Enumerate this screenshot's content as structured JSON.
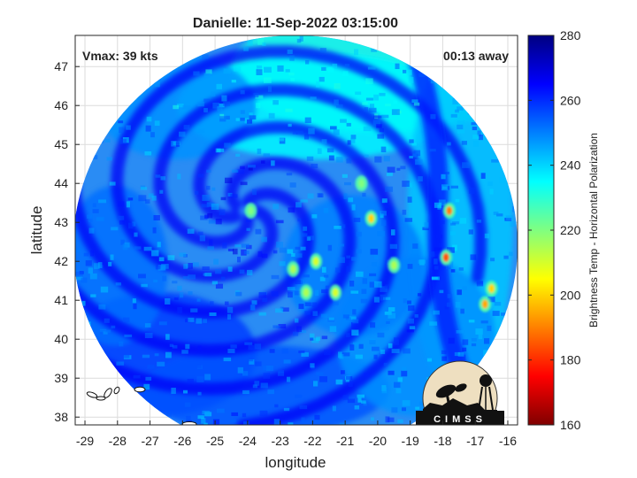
{
  "chart_data": {
    "type": "heatmap",
    "title": "Danielle: 11-Sep-2022 03:15:00",
    "xlabel": "longitude",
    "ylabel": "latitude",
    "xlim": [
      -29.3,
      -15.7
    ],
    "ylim": [
      37.8,
      47.8
    ],
    "x_ticks": [
      -29,
      -28,
      -27,
      -26,
      -25,
      -24,
      -23,
      -22,
      -21,
      -20,
      -19,
      -18,
      -17,
      -16
    ],
    "y_ticks": [
      38,
      39,
      40,
      41,
      42,
      43,
      44,
      45,
      46,
      47
    ],
    "grid": true,
    "annotations": {
      "vmax": "Vmax: 39 kts",
      "time_away": "00:13 away"
    },
    "storm_center": {
      "lon": -24.1,
      "lat": 43.3
    },
    "swath": {
      "center_lon": -22.5,
      "center_lat": 42.6
    },
    "colorbar": {
      "label": "Brightness Temp - Horizontal Polarization",
      "min": 160,
      "max": 280,
      "ticks": [
        280,
        260,
        240,
        220,
        200,
        180,
        160
      ],
      "colormap": [
        "#800000",
        "#ff0000",
        "#ff8000",
        "#ffff00",
        "#80ff80",
        "#00ffff",
        "#0080ff",
        "#0000ff",
        "#000080"
      ]
    },
    "warm_cells": [
      {
        "lon": -17.9,
        "lat": 42.1,
        "value": 185
      },
      {
        "lon": -17.8,
        "lat": 43.3,
        "value": 190
      },
      {
        "lon": -16.7,
        "lat": 40.9,
        "value": 195
      },
      {
        "lon": -20.2,
        "lat": 43.1,
        "value": 200
      },
      {
        "lon": -16.5,
        "lat": 41.3,
        "value": 200
      },
      {
        "lon": -21.9,
        "lat": 42.0,
        "value": 210
      },
      {
        "lon": -21.3,
        "lat": 41.2,
        "value": 210
      },
      {
        "lon": -22.2,
        "lat": 41.2,
        "value": 215
      },
      {
        "lon": -22.6,
        "lat": 41.8,
        "value": 215
      },
      {
        "lon": -19.5,
        "lat": 41.9,
        "value": 215
      },
      {
        "lon": -23.9,
        "lat": 43.3,
        "value": 220
      },
      {
        "lon": -20.5,
        "lat": 44.0,
        "value": 220
      }
    ]
  },
  "logo": {
    "text": "CIMSS"
  }
}
